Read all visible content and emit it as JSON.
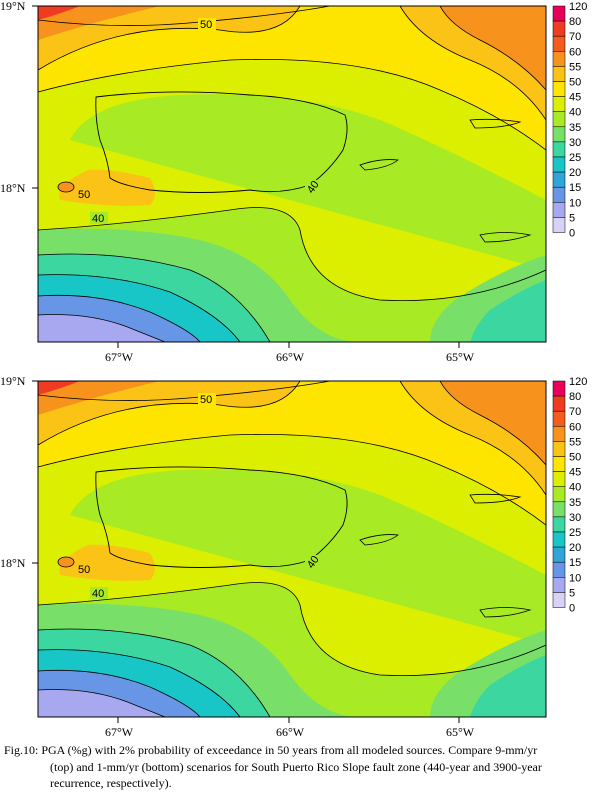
{
  "maps": [
    {
      "lat_labels": [
        "19°N",
        "18°N"
      ],
      "lon_labels": [
        "67°W",
        "66°W",
        "65°W"
      ],
      "contour_labels": [
        "50",
        "40",
        "40",
        "50"
      ]
    },
    {
      "lat_labels": [
        "19°N",
        "18°N"
      ],
      "lon_labels": [
        "67°W",
        "66°W",
        "65°W"
      ],
      "contour_labels": [
        "50",
        "40",
        "40",
        "50"
      ]
    }
  ],
  "colorbar": {
    "ticks": [
      "120",
      "80",
      "70",
      "60",
      "55",
      "50",
      "45",
      "40",
      "35",
      "30",
      "25",
      "20",
      "15",
      "10",
      "5",
      "0"
    ],
    "colors": [
      "#e8005a",
      "#ef3b22",
      "#f35c1e",
      "#f7921c",
      "#fbc316",
      "#fde500",
      "#dcef00",
      "#a8ea24",
      "#78e068",
      "#3cd6a0",
      "#18c6c8",
      "#30a6d8",
      "#6896e6",
      "#a8a8f0",
      "#d6d2f8",
      "#ffffff"
    ]
  },
  "caption": {
    "line1": "Fig.10:  PGA (%g) with 2% probability of exceedance in 50 years from all modeled sources. Compare 9-mm/yr",
    "line2": "(top) and 1-mm/yr (bottom) scenarios for South Puerto Rico Slope fault zone (440-year and 3900-year",
    "line3": "recurrence, respectively)."
  }
}
